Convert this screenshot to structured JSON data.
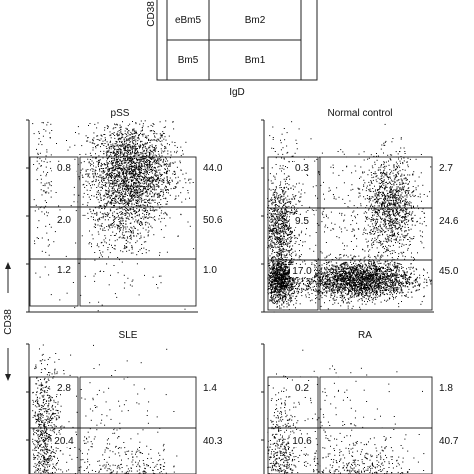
{
  "schematic": {
    "ylabel": "CD38",
    "xlabel": "IgD",
    "gates": [
      "eBm5",
      "Bm2",
      "Bm5",
      "Bm1"
    ]
  },
  "shared_ylabel": "CD38",
  "chart_data": [
    {
      "type": "scatter",
      "title": "pSS",
      "ylabel": "CD38",
      "gate_values_inner": [
        "0.8",
        "2.0",
        "1.2"
      ],
      "gate_values_right": [
        "44.0",
        "50.6",
        "1.0"
      ],
      "populations": [
        {
          "x": 0.6,
          "y": 0.73,
          "sx": 0.13,
          "sy": 0.13,
          "n": 2600
        },
        {
          "x": 0.55,
          "y": 0.45,
          "sx": 0.1,
          "sy": 0.1,
          "n": 300
        },
        {
          "x": 0.07,
          "y": 0.7,
          "sx": 0.04,
          "sy": 0.22,
          "n": 120
        },
        {
          "x": 0.5,
          "y": 0.18,
          "sx": 0.25,
          "sy": 0.08,
          "n": 60
        }
      ]
    },
    {
      "type": "scatter",
      "title": "Normal control",
      "ylabel": "CD38",
      "gate_values_inner": [
        "0.3",
        "9.5",
        "17.0"
      ],
      "gate_values_right": [
        "2.7",
        "24.6",
        "45.0"
      ],
      "populations": [
        {
          "x": 0.08,
          "y": 0.45,
          "sx": 0.05,
          "sy": 0.11,
          "n": 800
        },
        {
          "x": 0.08,
          "y": 0.17,
          "sx": 0.05,
          "sy": 0.06,
          "n": 1200
        },
        {
          "x": 0.55,
          "y": 0.17,
          "sx": 0.17,
          "sy": 0.05,
          "n": 2600
        },
        {
          "x": 0.75,
          "y": 0.55,
          "sx": 0.08,
          "sy": 0.13,
          "n": 1200
        },
        {
          "x": 0.45,
          "y": 0.55,
          "sx": 0.22,
          "sy": 0.15,
          "n": 250
        },
        {
          "x": 0.1,
          "y": 0.8,
          "sx": 0.06,
          "sy": 0.1,
          "n": 60
        }
      ]
    },
    {
      "type": "scatter",
      "title": "SLE",
      "ylabel": "CD38",
      "gate_values_inner": [
        "2.8",
        "20.4"
      ],
      "gate_values_right": [
        "1.4",
        "40.3"
      ],
      "populations": [
        {
          "x": 0.07,
          "y": 0.5,
          "sx": 0.05,
          "sy": 0.2,
          "n": 800
        },
        {
          "x": 0.6,
          "y": 0.18,
          "sx": 0.14,
          "sy": 0.11,
          "n": 1500
        },
        {
          "x": 0.4,
          "y": 0.45,
          "sx": 0.22,
          "sy": 0.22,
          "n": 300
        }
      ]
    },
    {
      "type": "scatter",
      "title": "RA",
      "ylabel": "CD38",
      "gate_values_inner": [
        "0.2",
        "10.6"
      ],
      "gate_values_right": [
        "1.8",
        "40.7"
      ],
      "populations": [
        {
          "x": 0.08,
          "y": 0.35,
          "sx": 0.05,
          "sy": 0.2,
          "n": 600
        },
        {
          "x": 0.6,
          "y": 0.18,
          "sx": 0.15,
          "sy": 0.12,
          "n": 1700
        },
        {
          "x": 0.4,
          "y": 0.45,
          "sx": 0.22,
          "sy": 0.22,
          "n": 350
        }
      ]
    }
  ]
}
